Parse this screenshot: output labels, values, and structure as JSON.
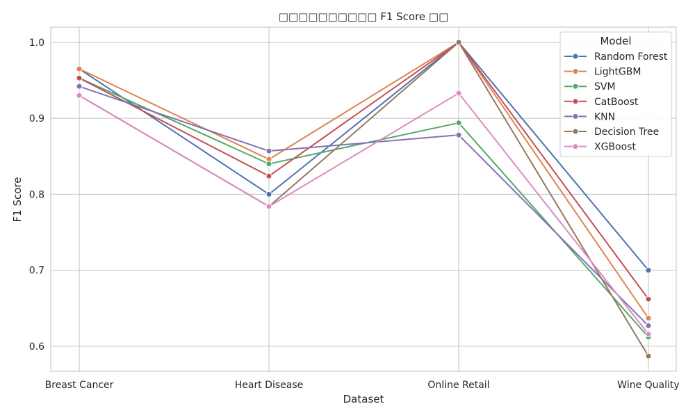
{
  "chart_data": {
    "type": "line",
    "title": "□□□□□□□□□□ F1 Score □□",
    "xlabel": "Dataset",
    "ylabel": "F1 Score",
    "categories": [
      "Breast Cancer",
      "Heart Disease",
      "Online Retail",
      "Wine Quality"
    ],
    "ylim": [
      0.567,
      1.02
    ],
    "yticks": [
      0.6,
      0.7,
      0.8,
      0.9,
      1.0
    ],
    "ytick_labels": [
      "0.6",
      "0.7",
      "0.8",
      "0.9",
      "1.0"
    ],
    "grid": true,
    "legend": {
      "title": "Model",
      "placement": "top-right"
    },
    "series": [
      {
        "name": "Random Forest",
        "color": "#4c72b0",
        "values": [
          0.965,
          0.8,
          1.0,
          0.7
        ]
      },
      {
        "name": "LightGBM",
        "color": "#dd8452",
        "values": [
          0.965,
          0.846,
          1.0,
          0.637
        ]
      },
      {
        "name": "SVM",
        "color": "#55a868",
        "values": [
          0.953,
          0.84,
          0.894,
          0.612
        ]
      },
      {
        "name": "CatBoost",
        "color": "#c44e52",
        "values": [
          0.953,
          0.824,
          1.0,
          0.662
        ]
      },
      {
        "name": "KNN",
        "color": "#8172b3",
        "values": [
          0.942,
          0.857,
          0.878,
          0.627
        ]
      },
      {
        "name": "Decision Tree",
        "color": "#937860",
        "values": [
          0.93,
          0.784,
          1.0,
          0.587
        ]
      },
      {
        "name": "XGBoost",
        "color": "#da8bc3",
        "values": [
          0.93,
          0.784,
          0.933,
          0.616
        ]
      }
    ]
  }
}
